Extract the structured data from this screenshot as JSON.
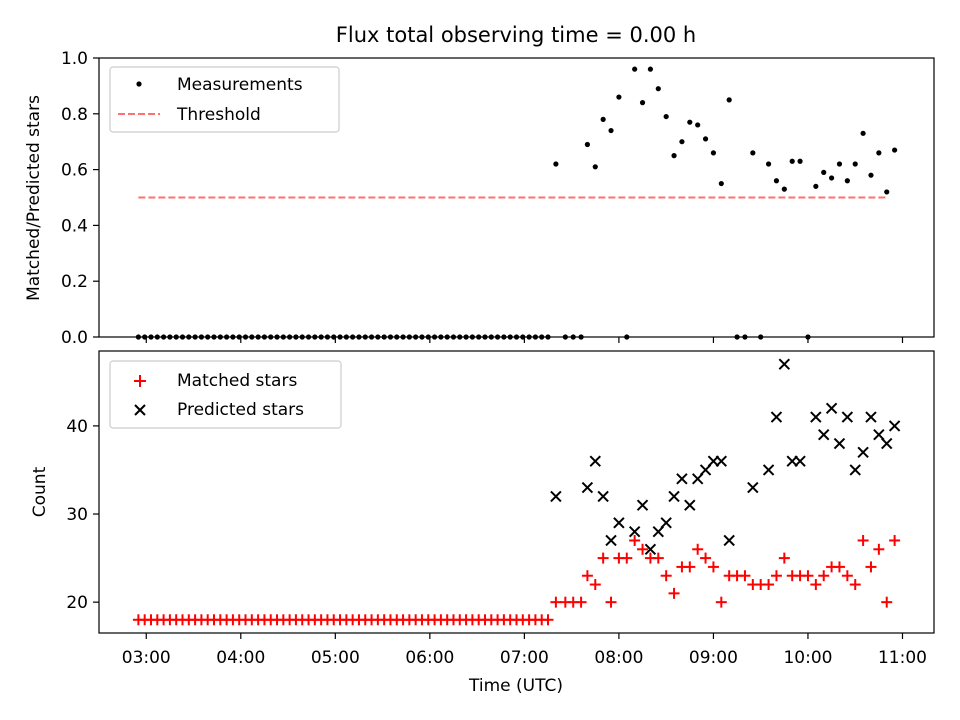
{
  "figure": {
    "title": "Flux total observing time = 0.00 h"
  },
  "chart_data": [
    {
      "type": "scatter",
      "ylabel": "Matched/Predicted stars",
      "xlabel": "",
      "xlim": [
        "02:30",
        "11:20"
      ],
      "ylim": [
        0,
        1.0
      ],
      "y_ticks": [
        "0.0",
        "0.2",
        "0.4",
        "0.6",
        "0.8",
        "1.0"
      ],
      "x_ticks": [
        "03:00",
        "04:00",
        "05:00",
        "06:00",
        "07:00",
        "08:00",
        "09:00",
        "10:00",
        "11:00"
      ],
      "x_tick_labels_visible": false,
      "legend": {
        "placement": "top-left",
        "entries": [
          "Measurements",
          "Threshold"
        ]
      },
      "colors": {
        "measurements": "#000000",
        "threshold": "#ff7070"
      },
      "series": [
        {
          "name": "Measurements",
          "marker": "dot",
          "points": [
            [
              "02:55",
              0
            ],
            [
              "02:59",
              0
            ],
            [
              "03:03",
              0
            ],
            [
              "03:07",
              0
            ],
            [
              "03:11",
              0
            ],
            [
              "03:15",
              0
            ],
            [
              "03:19",
              0
            ],
            [
              "03:23",
              0
            ],
            [
              "03:27",
              0
            ],
            [
              "03:31",
              0
            ],
            [
              "03:35",
              0
            ],
            [
              "03:39",
              0
            ],
            [
              "03:43",
              0
            ],
            [
              "03:47",
              0
            ],
            [
              "03:51",
              0
            ],
            [
              "03:55",
              0
            ],
            [
              "03:59",
              0
            ],
            [
              "04:03",
              0
            ],
            [
              "04:07",
              0
            ],
            [
              "04:11",
              0
            ],
            [
              "04:15",
              0
            ],
            [
              "04:19",
              0
            ],
            [
              "04:23",
              0
            ],
            [
              "04:27",
              0
            ],
            [
              "04:31",
              0
            ],
            [
              "04:35",
              0
            ],
            [
              "04:39",
              0
            ],
            [
              "04:43",
              0
            ],
            [
              "04:47",
              0
            ],
            [
              "04:51",
              0
            ],
            [
              "04:55",
              0
            ],
            [
              "04:59",
              0
            ],
            [
              "05:03",
              0
            ],
            [
              "05:07",
              0
            ],
            [
              "05:11",
              0
            ],
            [
              "05:15",
              0
            ],
            [
              "05:19",
              0
            ],
            [
              "05:23",
              0
            ],
            [
              "05:27",
              0
            ],
            [
              "05:31",
              0
            ],
            [
              "05:35",
              0
            ],
            [
              "05:39",
              0
            ],
            [
              "05:43",
              0
            ],
            [
              "05:47",
              0
            ],
            [
              "05:51",
              0
            ],
            [
              "05:55",
              0
            ],
            [
              "05:59",
              0
            ],
            [
              "06:03",
              0
            ],
            [
              "06:07",
              0
            ],
            [
              "06:11",
              0
            ],
            [
              "06:15",
              0
            ],
            [
              "06:19",
              0
            ],
            [
              "06:23",
              0
            ],
            [
              "06:27",
              0
            ],
            [
              "06:31",
              0
            ],
            [
              "06:35",
              0
            ],
            [
              "06:39",
              0
            ],
            [
              "06:43",
              0
            ],
            [
              "06:47",
              0
            ],
            [
              "06:51",
              0
            ],
            [
              "06:55",
              0
            ],
            [
              "06:59",
              0
            ],
            [
              "07:03",
              0
            ],
            [
              "07:07",
              0
            ],
            [
              "07:11",
              0
            ],
            [
              "07:15",
              0
            ],
            [
              "07:20",
              0.62
            ],
            [
              "07:26",
              0
            ],
            [
              "07:31",
              0
            ],
            [
              "07:36",
              0
            ],
            [
              "07:40",
              0.69
            ],
            [
              "07:45",
              0.61
            ],
            [
              "07:50",
              0.78
            ],
            [
              "07:55",
              0.74
            ],
            [
              "08:00",
              0.86
            ],
            [
              "08:05",
              0
            ],
            [
              "08:10",
              0.96
            ],
            [
              "08:15",
              0.84
            ],
            [
              "08:20",
              0.96
            ],
            [
              "08:25",
              0.89
            ],
            [
              "08:30",
              0.79
            ],
            [
              "08:35",
              0.65
            ],
            [
              "08:40",
              0.7
            ],
            [
              "08:45",
              0.77
            ],
            [
              "08:50",
              0.76
            ],
            [
              "08:55",
              0.71
            ],
            [
              "09:00",
              0.66
            ],
            [
              "09:05",
              0.55
            ],
            [
              "09:10",
              0.85
            ],
            [
              "09:15",
              0
            ],
            [
              "09:20",
              0
            ],
            [
              "09:25",
              0.66
            ],
            [
              "09:30",
              0
            ],
            [
              "09:35",
              0.62
            ],
            [
              "09:40",
              0.56
            ],
            [
              "09:45",
              0.53
            ],
            [
              "09:50",
              0.63
            ],
            [
              "09:55",
              0.63
            ],
            [
              "10:00",
              0
            ],
            [
              "10:05",
              0.54
            ],
            [
              "10:10",
              0.59
            ],
            [
              "10:15",
              0.57
            ],
            [
              "10:20",
              0.62
            ],
            [
              "10:25",
              0.56
            ],
            [
              "10:30",
              0.62
            ],
            [
              "10:35",
              0.73
            ],
            [
              "10:40",
              0.58
            ],
            [
              "10:45",
              0.66
            ],
            [
              "10:50",
              0.52
            ],
            [
              "10:55",
              0.67
            ]
          ]
        },
        {
          "name": "Threshold",
          "marker": "dashed-line",
          "points": [
            [
              "02:55",
              0.5
            ],
            [
              "10:50",
              0.5
            ]
          ]
        }
      ]
    },
    {
      "type": "scatter",
      "ylabel": "Count",
      "xlabel": "Time (UTC)",
      "xlim": [
        "02:30",
        "11:20"
      ],
      "ylim": [
        16.5,
        48.5
      ],
      "y_ticks": [
        "20",
        "30",
        "40"
      ],
      "x_ticks": [
        "03:00",
        "04:00",
        "05:00",
        "06:00",
        "07:00",
        "08:00",
        "09:00",
        "10:00",
        "11:00"
      ],
      "legend": {
        "placement": "top-left",
        "entries": [
          "Matched stars",
          "Predicted stars"
        ]
      },
      "colors": {
        "matched": "#ff0000",
        "predicted": "#000000"
      },
      "series": [
        {
          "name": "Matched stars",
          "marker": "plus",
          "points": [
            [
              "02:55",
              18
            ],
            [
              "02:59",
              18
            ],
            [
              "03:03",
              18
            ],
            [
              "03:07",
              18
            ],
            [
              "03:11",
              18
            ],
            [
              "03:15",
              18
            ],
            [
              "03:19",
              18
            ],
            [
              "03:23",
              18
            ],
            [
              "03:27",
              18
            ],
            [
              "03:31",
              18
            ],
            [
              "03:35",
              18
            ],
            [
              "03:39",
              18
            ],
            [
              "03:43",
              18
            ],
            [
              "03:47",
              18
            ],
            [
              "03:51",
              18
            ],
            [
              "03:55",
              18
            ],
            [
              "03:59",
              18
            ],
            [
              "04:03",
              18
            ],
            [
              "04:07",
              18
            ],
            [
              "04:11",
              18
            ],
            [
              "04:15",
              18
            ],
            [
              "04:19",
              18
            ],
            [
              "04:23",
              18
            ],
            [
              "04:27",
              18
            ],
            [
              "04:31",
              18
            ],
            [
              "04:35",
              18
            ],
            [
              "04:39",
              18
            ],
            [
              "04:43",
              18
            ],
            [
              "04:47",
              18
            ],
            [
              "04:51",
              18
            ],
            [
              "04:55",
              18
            ],
            [
              "04:59",
              18
            ],
            [
              "05:03",
              18
            ],
            [
              "05:07",
              18
            ],
            [
              "05:11",
              18
            ],
            [
              "05:15",
              18
            ],
            [
              "05:19",
              18
            ],
            [
              "05:23",
              18
            ],
            [
              "05:27",
              18
            ],
            [
              "05:31",
              18
            ],
            [
              "05:35",
              18
            ],
            [
              "05:39",
              18
            ],
            [
              "05:43",
              18
            ],
            [
              "05:47",
              18
            ],
            [
              "05:51",
              18
            ],
            [
              "05:55",
              18
            ],
            [
              "05:59",
              18
            ],
            [
              "06:03",
              18
            ],
            [
              "06:07",
              18
            ],
            [
              "06:11",
              18
            ],
            [
              "06:15",
              18
            ],
            [
              "06:19",
              18
            ],
            [
              "06:23",
              18
            ],
            [
              "06:27",
              18
            ],
            [
              "06:31",
              18
            ],
            [
              "06:35",
              18
            ],
            [
              "06:39",
              18
            ],
            [
              "06:43",
              18
            ],
            [
              "06:47",
              18
            ],
            [
              "06:51",
              18
            ],
            [
              "06:55",
              18
            ],
            [
              "06:59",
              18
            ],
            [
              "07:03",
              18
            ],
            [
              "07:07",
              18
            ],
            [
              "07:11",
              18
            ],
            [
              "07:15",
              18
            ],
            [
              "07:20",
              20
            ],
            [
              "07:26",
              20
            ],
            [
              "07:31",
              20
            ],
            [
              "07:36",
              20
            ],
            [
              "07:40",
              23
            ],
            [
              "07:45",
              22
            ],
            [
              "07:50",
              25
            ],
            [
              "07:55",
              20
            ],
            [
              "08:00",
              25
            ],
            [
              "08:05",
              25
            ],
            [
              "08:10",
              27
            ],
            [
              "08:15",
              26
            ],
            [
              "08:20",
              25
            ],
            [
              "08:25",
              25
            ],
            [
              "08:30",
              23
            ],
            [
              "08:35",
              21
            ],
            [
              "08:40",
              24
            ],
            [
              "08:45",
              24
            ],
            [
              "08:50",
              26
            ],
            [
              "08:55",
              25
            ],
            [
              "09:00",
              24
            ],
            [
              "09:05",
              20
            ],
            [
              "09:10",
              23
            ],
            [
              "09:15",
              23
            ],
            [
              "09:20",
              23
            ],
            [
              "09:25",
              22
            ],
            [
              "09:30",
              22
            ],
            [
              "09:35",
              22
            ],
            [
              "09:40",
              23
            ],
            [
              "09:45",
              25
            ],
            [
              "09:50",
              23
            ],
            [
              "09:55",
              23
            ],
            [
              "10:00",
              23
            ],
            [
              "10:05",
              22
            ],
            [
              "10:10",
              23
            ],
            [
              "10:15",
              24
            ],
            [
              "10:20",
              24
            ],
            [
              "10:25",
              23
            ],
            [
              "10:30",
              22
            ],
            [
              "10:35",
              27
            ],
            [
              "10:40",
              24
            ],
            [
              "10:45",
              26
            ],
            [
              "10:50",
              20
            ],
            [
              "10:55",
              27
            ]
          ]
        },
        {
          "name": "Predicted stars",
          "marker": "x",
          "points": [
            [
              "07:20",
              32
            ],
            [
              "07:40",
              33
            ],
            [
              "07:45",
              36
            ],
            [
              "07:50",
              32
            ],
            [
              "07:55",
              27
            ],
            [
              "08:00",
              29
            ],
            [
              "08:10",
              28
            ],
            [
              "08:15",
              31
            ],
            [
              "08:20",
              26
            ],
            [
              "08:25",
              28
            ],
            [
              "08:30",
              29
            ],
            [
              "08:35",
              32
            ],
            [
              "08:40",
              34
            ],
            [
              "08:45",
              31
            ],
            [
              "08:50",
              34
            ],
            [
              "08:55",
              35
            ],
            [
              "09:00",
              36
            ],
            [
              "09:05",
              36
            ],
            [
              "09:10",
              27
            ],
            [
              "09:25",
              33
            ],
            [
              "09:35",
              35
            ],
            [
              "09:40",
              41
            ],
            [
              "09:45",
              47
            ],
            [
              "09:50",
              36
            ],
            [
              "09:55",
              36
            ],
            [
              "10:05",
              41
            ],
            [
              "10:10",
              39
            ],
            [
              "10:15",
              42
            ],
            [
              "10:20",
              38
            ],
            [
              "10:25",
              41
            ],
            [
              "10:30",
              35
            ],
            [
              "10:35",
              37
            ],
            [
              "10:40",
              41
            ],
            [
              "10:45",
              39
            ],
            [
              "10:50",
              38
            ],
            [
              "10:55",
              40
            ]
          ]
        }
      ]
    }
  ]
}
